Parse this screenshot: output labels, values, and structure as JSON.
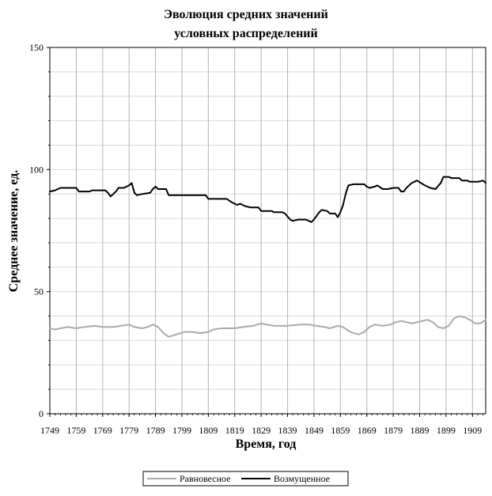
{
  "chart_data": {
    "type": "line",
    "title": [
      "Эволюция средних значений",
      "условных распределений"
    ],
    "xlabel": "Время, год",
    "ylabel": "Среднее значение, ед.",
    "xlim": [
      1749,
      1914
    ],
    "ylim": [
      0,
      150
    ],
    "x_ticks": [
      1749,
      1759,
      1769,
      1779,
      1789,
      1799,
      1809,
      1819,
      1829,
      1839,
      1849,
      1859,
      1869,
      1879,
      1889,
      1899,
      1909
    ],
    "y_ticks": [
      0,
      50,
      100,
      150
    ],
    "grid": true,
    "legend_position": "bottom",
    "series": [
      {
        "name": "Равновесное",
        "color": "#aaaaaa",
        "points": [
          [
            1749,
            35
          ],
          [
            1751,
            34.5
          ],
          [
            1753,
            35
          ],
          [
            1756,
            35.5
          ],
          [
            1759,
            35
          ],
          [
            1762,
            35.5
          ],
          [
            1766,
            36
          ],
          [
            1769,
            35.5
          ],
          [
            1773,
            35.5
          ],
          [
            1776,
            36
          ],
          [
            1779,
            36.5
          ],
          [
            1781,
            35.5
          ],
          [
            1784,
            35
          ],
          [
            1786,
            35.5
          ],
          [
            1788,
            36.5
          ],
          [
            1790,
            35.5
          ],
          [
            1792,
            33
          ],
          [
            1794,
            31.5
          ],
          [
            1797,
            32.5
          ],
          [
            1800,
            33.5
          ],
          [
            1803,
            33.5
          ],
          [
            1806,
            33
          ],
          [
            1809,
            33.5
          ],
          [
            1811,
            34.5
          ],
          [
            1814,
            35
          ],
          [
            1819,
            35
          ],
          [
            1822,
            35.5
          ],
          [
            1826,
            36
          ],
          [
            1829,
            37
          ],
          [
            1831,
            36.5
          ],
          [
            1834,
            36
          ],
          [
            1839,
            36
          ],
          [
            1844,
            36.5
          ],
          [
            1847,
            36.5
          ],
          [
            1850,
            36
          ],
          [
            1853,
            35.5
          ],
          [
            1855,
            35
          ],
          [
            1858,
            36
          ],
          [
            1860,
            35.5
          ],
          [
            1862,
            34
          ],
          [
            1864,
            33
          ],
          [
            1866,
            32.5
          ],
          [
            1868,
            33.5
          ],
          [
            1870,
            35.5
          ],
          [
            1872,
            36.5
          ],
          [
            1875,
            36
          ],
          [
            1878,
            36.5
          ],
          [
            1880,
            37.5
          ],
          [
            1882,
            38
          ],
          [
            1884,
            37.5
          ],
          [
            1886,
            37
          ],
          [
            1888,
            37.5
          ],
          [
            1890,
            38
          ],
          [
            1892,
            38.5
          ],
          [
            1894,
            37.5
          ],
          [
            1896,
            35.5
          ],
          [
            1898,
            35
          ],
          [
            1900,
            36
          ],
          [
            1902,
            39
          ],
          [
            1904,
            40
          ],
          [
            1906,
            39.5
          ],
          [
            1908,
            38.5
          ],
          [
            1910,
            37
          ],
          [
            1912,
            37
          ],
          [
            1914,
            38.5
          ]
        ]
      },
      {
        "name": "Возмущенное",
        "color": "#000000",
        "points": [
          [
            1749,
            91
          ],
          [
            1751,
            91.5
          ],
          [
            1753,
            92.5
          ],
          [
            1759,
            92.5
          ],
          [
            1760,
            91
          ],
          [
            1764,
            91
          ],
          [
            1765,
            91.5
          ],
          [
            1770,
            91.5
          ],
          [
            1771,
            90.5
          ],
          [
            1772,
            89
          ],
          [
            1774,
            91
          ],
          [
            1775,
            92.5
          ],
          [
            1777,
            92.5
          ],
          [
            1779,
            93.5
          ],
          [
            1780,
            94.5
          ],
          [
            1781,
            90.5
          ],
          [
            1782,
            89.5
          ],
          [
            1784,
            90
          ],
          [
            1787,
            90.5
          ],
          [
            1788,
            92
          ],
          [
            1789,
            93
          ],
          [
            1790,
            92
          ],
          [
            1793,
            92
          ],
          [
            1794,
            89.5
          ],
          [
            1808,
            89.5
          ],
          [
            1809,
            88
          ],
          [
            1816,
            88
          ],
          [
            1818,
            86.5
          ],
          [
            1820,
            85.5
          ],
          [
            1821,
            86
          ],
          [
            1823,
            85
          ],
          [
            1825,
            84.5
          ],
          [
            1828,
            84.5
          ],
          [
            1829,
            83
          ],
          [
            1833,
            83
          ],
          [
            1834,
            82.5
          ],
          [
            1837,
            82.5
          ],
          [
            1838,
            82
          ],
          [
            1840,
            79.5
          ],
          [
            1841,
            79
          ],
          [
            1843,
            79.5
          ],
          [
            1846,
            79.5
          ],
          [
            1848,
            78.5
          ],
          [
            1849,
            79.5
          ],
          [
            1851,
            82.5
          ],
          [
            1852,
            83.5
          ],
          [
            1854,
            83
          ],
          [
            1855,
            82
          ],
          [
            1857,
            82
          ],
          [
            1858,
            80.5
          ],
          [
            1859,
            82.5
          ],
          [
            1860,
            85.5
          ],
          [
            1861,
            90
          ],
          [
            1862,
            93.5
          ],
          [
            1864,
            94
          ],
          [
            1868,
            94
          ],
          [
            1869,
            93
          ],
          [
            1870,
            92.5
          ],
          [
            1872,
            93
          ],
          [
            1873,
            93.5
          ],
          [
            1875,
            92
          ],
          [
            1877,
            92
          ],
          [
            1879,
            92.5
          ],
          [
            1881,
            92.5
          ],
          [
            1882,
            91
          ],
          [
            1883,
            91
          ],
          [
            1884,
            92.5
          ],
          [
            1886,
            94.5
          ],
          [
            1888,
            95.5
          ],
          [
            1891,
            93.5
          ],
          [
            1893,
            92.5
          ],
          [
            1895,
            92
          ],
          [
            1897,
            94.5
          ],
          [
            1898,
            97
          ],
          [
            1900,
            97
          ],
          [
            1901,
            96.5
          ],
          [
            1904,
            96.5
          ],
          [
            1905,
            95.5
          ],
          [
            1907,
            95.5
          ],
          [
            1908,
            95
          ],
          [
            1911,
            95
          ],
          [
            1913,
            95.5
          ],
          [
            1914,
            94.5
          ]
        ]
      }
    ]
  }
}
